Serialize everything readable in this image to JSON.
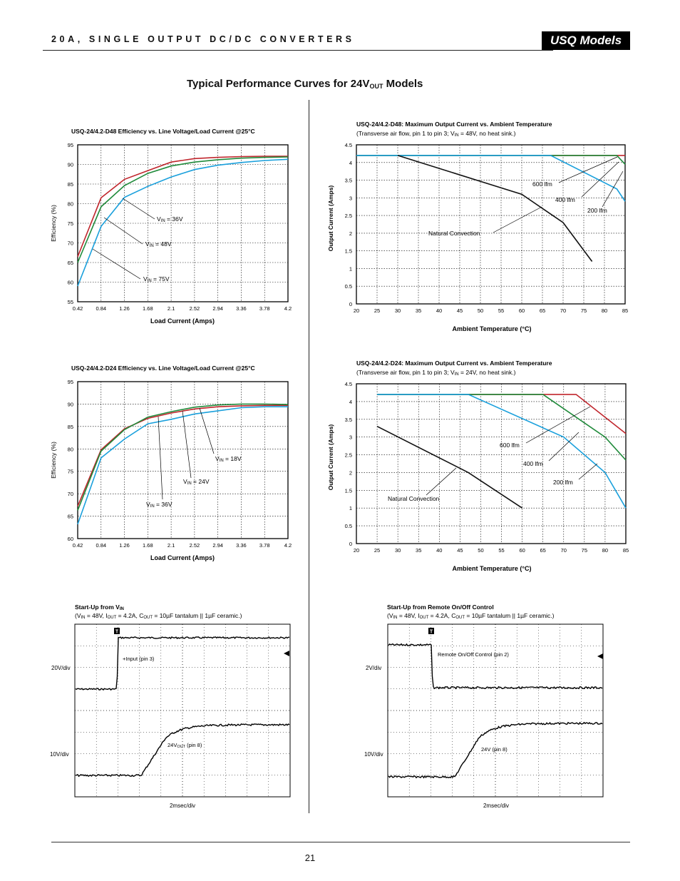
{
  "header": {
    "title": "20A, SINGLE OUTPUT DC/DC CONVERTERS",
    "badge": "USQ Models"
  },
  "section": {
    "title_main": "Typical Performance Curves for 24V",
    "title_sub": "OUT",
    "title_tail": " Models"
  },
  "page_number": "21",
  "colors": {
    "red": "#c0262d",
    "green": "#1f8a3a",
    "blue": "#1aa0dc",
    "black": "#111111"
  },
  "chart_data": [
    {
      "id": "eff_d48",
      "type": "line",
      "title": "USQ-24/4.2-D48 Efficiency vs. Line Voltage/Load Current @25°C",
      "xlabel": "Load Current (Amps)",
      "ylabel": "Efficiency (%)",
      "xlim": [
        0.42,
        4.2
      ],
      "ylim": [
        55,
        95
      ],
      "xticks": [
        0.42,
        0.84,
        1.26,
        1.68,
        2.1,
        2.52,
        2.94,
        3.36,
        3.78,
        4.2
      ],
      "yticks": [
        55,
        60,
        65,
        70,
        75,
        80,
        85,
        90,
        95
      ],
      "grid": true,
      "series": [
        {
          "label_base": "V",
          "label_sub": "IN",
          "label_tail": " = 36V",
          "color": "red",
          "x": [
            0.42,
            0.84,
            1.26,
            1.68,
            2.1,
            2.52,
            2.94,
            3.36,
            3.78,
            4.2
          ],
          "y": [
            66.5,
            81.5,
            86.2,
            88.4,
            90.6,
            91.5,
            91.8,
            92.0,
            92.1,
            92.1
          ]
        },
        {
          "label_base": "V",
          "label_sub": "IN",
          "label_tail": " = 48V",
          "color": "green",
          "x": [
            0.42,
            0.84,
            1.26,
            1.68,
            2.1,
            2.52,
            2.94,
            3.36,
            3.78,
            4.2
          ],
          "y": [
            65.0,
            79.2,
            84.6,
            87.7,
            89.6,
            90.6,
            91.2,
            91.6,
            91.8,
            91.9
          ]
        },
        {
          "label_base": "V",
          "label_sub": "IN",
          "label_tail": " = 75V",
          "color": "blue",
          "x": [
            0.42,
            0.84,
            1.26,
            1.68,
            2.1,
            2.52,
            2.94,
            3.36,
            3.78,
            4.2
          ],
          "y": [
            59.0,
            74.2,
            81.6,
            84.4,
            86.8,
            88.7,
            89.8,
            90.5,
            91.0,
            91.3
          ]
        }
      ]
    },
    {
      "id": "cur_d48",
      "type": "line",
      "title": "USQ-24/4.2-D48: Maximum Output Current vs. Ambient Temperature",
      "subtitle_a": "(Transverse air flow, pin 1 to pin 3; V",
      "subtitle_sub": "IN",
      "subtitle_b": " = 48V, no heat sink.)",
      "xlabel": "Ambient Temperature (°C)",
      "ylabel": "Output Current (Amps)",
      "xlim": [
        20,
        85
      ],
      "ylim": [
        0,
        4.5
      ],
      "xticks": [
        20,
        25,
        30,
        35,
        40,
        45,
        50,
        55,
        60,
        65,
        70,
        75,
        80,
        85
      ],
      "yticks": [
        0,
        0.5,
        1,
        1.5,
        2,
        2.5,
        3,
        3.5,
        4,
        4.5
      ],
      "grid": true,
      "series": [
        {
          "label": "200 lfm",
          "color": "red",
          "x": [
            20,
            85
          ],
          "y": [
            4.2,
            4.2
          ]
        },
        {
          "label": "400 lfm",
          "color": "green",
          "x": [
            20,
            83,
            85
          ],
          "y": [
            4.2,
            4.2,
            3.95
          ]
        },
        {
          "label": "600 lfm",
          "color": "blue",
          "x": [
            20,
            67,
            83,
            85
          ],
          "y": [
            4.2,
            4.2,
            3.25,
            2.9
          ]
        },
        {
          "label": "Natural Convection",
          "color": "black",
          "x": [
            30,
            60,
            70,
            77
          ],
          "y": [
            4.2,
            3.1,
            2.3,
            1.2
          ]
        }
      ]
    },
    {
      "id": "eff_d24",
      "type": "line",
      "title": "USQ-24/4.2-D24 Efficiency vs. Line Voltage/Load Current @25°C",
      "xlabel": "Load Current (Amps)",
      "ylabel": "Efficiency (%)",
      "xlim": [
        0.42,
        4.2
      ],
      "ylim": [
        60,
        95
      ],
      "xticks": [
        0.42,
        0.84,
        1.26,
        1.68,
        2.1,
        2.52,
        2.94,
        3.36,
        3.78,
        4.2
      ],
      "yticks": [
        60,
        65,
        70,
        75,
        80,
        85,
        90,
        95
      ],
      "grid": true,
      "series": [
        {
          "label_base": "V",
          "label_sub": "IN",
          "label_tail": " = 18V",
          "color": "red",
          "x": [
            0.42,
            0.84,
            1.26,
            1.68,
            2.1,
            2.52,
            2.94,
            3.36,
            3.78,
            4.2
          ],
          "y": [
            67.2,
            79.8,
            84.5,
            86.8,
            88.0,
            88.9,
            89.4,
            89.6,
            89.7,
            89.7
          ]
        },
        {
          "label_base": "V",
          "label_sub": "IN",
          "label_tail": " = 24V",
          "color": "green",
          "x": [
            0.42,
            0.84,
            1.26,
            1.68,
            2.1,
            2.52,
            2.94,
            3.36,
            3.78,
            4.2
          ],
          "y": [
            66.3,
            79.5,
            84.3,
            87.1,
            88.3,
            89.3,
            89.8,
            90.0,
            90.0,
            89.9
          ]
        },
        {
          "label_base": "V",
          "label_sub": "IN",
          "label_tail": " = 36V",
          "color": "blue",
          "x": [
            0.42,
            0.84,
            1.26,
            1.68,
            2.1,
            2.52,
            2.94,
            3.36,
            3.78,
            4.2
          ],
          "y": [
            63.2,
            78.0,
            82.2,
            85.6,
            86.6,
            87.8,
            88.5,
            89.2,
            89.4,
            89.4
          ]
        }
      ]
    },
    {
      "id": "cur_d24",
      "type": "line",
      "title": "USQ-24/4.2-D24: Maximum Output Current vs. Ambient Temperature",
      "subtitle_a": "(Transverse air flow, pin 1 to pin 3; V",
      "subtitle_sub": "IN",
      "subtitle_b": " = 24V, no heat sink.)",
      "xlabel": "Ambient Temperature (°C)",
      "ylabel": "Output Current (Amps)",
      "xlim": [
        20,
        85
      ],
      "ylim": [
        0,
        4.5
      ],
      "xticks": [
        20,
        25,
        30,
        35,
        40,
        45,
        50,
        55,
        60,
        65,
        70,
        75,
        80,
        85
      ],
      "yticks": [
        0,
        0.5,
        1,
        1.5,
        2,
        2.5,
        3,
        3.5,
        4,
        4.5
      ],
      "grid": true,
      "series": [
        {
          "label": "200 lfm",
          "color": "red",
          "x": [
            25,
            73,
            85
          ],
          "y": [
            4.2,
            4.2,
            3.1
          ]
        },
        {
          "label": "400 lfm",
          "color": "green",
          "x": [
            25,
            65,
            80,
            85
          ],
          "y": [
            4.2,
            4.2,
            3.0,
            2.35
          ]
        },
        {
          "label": "600 lfm",
          "color": "blue",
          "x": [
            25,
            47,
            70,
            80,
            85
          ],
          "y": [
            4.2,
            4.2,
            3.0,
            2.0,
            1.0
          ]
        },
        {
          "label": "Natural Convection",
          "color": "black",
          "x": [
            25,
            47,
            60
          ],
          "y": [
            3.3,
            2.0,
            1.0
          ]
        }
      ]
    }
  ],
  "scopes": [
    {
      "id": "scope_vin",
      "title_a": "Start-Up from V",
      "title_sub": "IN",
      "cond_a": "(V",
      "cond_sub1": "IN",
      "cond_b": " = 48V, I",
      "cond_sub2": "OUT",
      "cond_c": " = 4.2A, C",
      "cond_sub3": "OUT",
      "cond_d": " = 10µF tantalum || 1µF ceramic.)",
      "ch1_scale": "20V/div",
      "ch2_scale": "10V/div",
      "ch1_label": "+Input (pin 3)",
      "ch2_label_a": "24V",
      "ch2_label_sub": "OUT",
      "ch2_label_b": " (pin 8)",
      "timebase": "2msec/div",
      "trigger": "T"
    },
    {
      "id": "scope_remote",
      "title_a": "Start-Up from Remote On/Off Control",
      "title_sub": "",
      "cond_a": "(V",
      "cond_sub1": "IN",
      "cond_b": " = 48V, I",
      "cond_sub2": "OUT",
      "cond_c": " = 4.2A, C",
      "cond_sub3": "OUT",
      "cond_d": " = 10µF tantalum || 1µF ceramic.)",
      "ch1_scale": "2V/div",
      "ch2_scale": "10V/div",
      "ch1_label": "Remote On/Off Control (pin 2)",
      "ch2_label_a": "24V",
      "ch2_label_sub": "",
      "ch2_label_b": " (pin 8)",
      "timebase": "2msec/div",
      "trigger": "T"
    }
  ]
}
